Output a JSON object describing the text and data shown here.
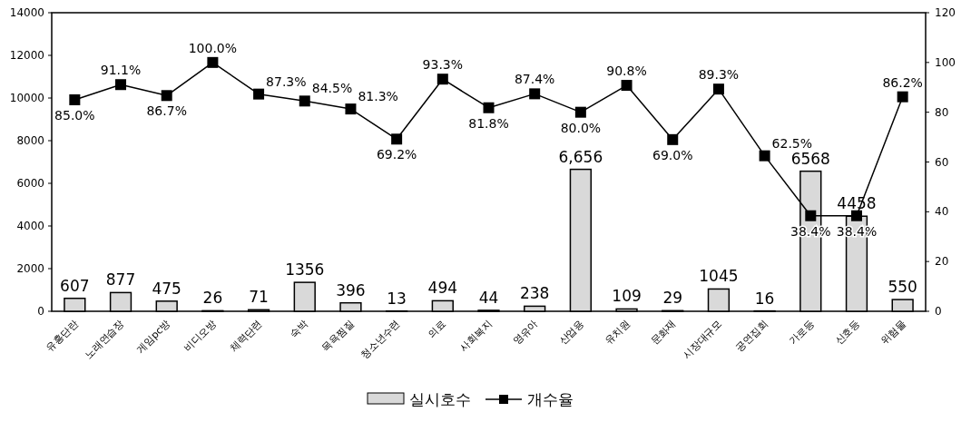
{
  "chart_data": {
    "type": "bar",
    "categories": [
      "유흥단란",
      "노래연습장",
      "게임pc방",
      "비디오방",
      "체력단련",
      "숙박",
      "목욕찜질",
      "청소년수련",
      "의료",
      "사회복지",
      "영유아",
      "산업용",
      "유치원",
      "문화재",
      "시장대규모",
      "공연집회",
      "가로등",
      "신호등",
      "위험물"
    ],
    "series": [
      {
        "name": "실시호수",
        "color": "#d9d9d9",
        "values": [
          607,
          877,
          475,
          26,
          71,
          1356,
          396,
          13,
          494,
          44,
          238,
          6656,
          109,
          29,
          1045,
          16,
          6568,
          4458,
          550
        ],
        "value_labels": [
          "607",
          "877",
          "475",
          "26",
          "71",
          "1356",
          "396",
          "13",
          "494",
          "44",
          "238",
          "6,656",
          "109",
          "29",
          "1045",
          "16",
          "6568",
          "4458",
          "550"
        ]
      },
      {
        "name": "개수율",
        "type": "line",
        "axis": "y2",
        "color": "#000000",
        "marker": "square",
        "values": [
          85.0,
          91.1,
          86.7,
          100.0,
          87.3,
          84.5,
          81.3,
          69.2,
          93.3,
          81.8,
          87.4,
          80.0,
          90.8,
          69.0,
          89.3,
          62.5,
          38.4,
          38.4,
          86.2
        ],
        "value_labels": [
          "85.0%",
          "91.1%",
          "86.7%",
          "100.0%",
          "87.3%",
          "84.5%",
          "81.3%",
          "69.2%",
          "93.3%",
          "81.8%",
          "87.4%",
          "80.0%",
          "90.8%",
          "69.0%",
          "89.3%",
          "62.5%",
          "38.4%",
          "38.4%",
          "86.2%"
        ]
      }
    ],
    "ylim": [
      0,
      14000
    ],
    "yticks": [
      0,
      2000,
      4000,
      6000,
      8000,
      10000,
      12000,
      14000
    ],
    "y2lim": [
      0,
      120
    ],
    "y2ticks": [
      0,
      20,
      40,
      60,
      80,
      100,
      120
    ],
    "legend": "bottom",
    "grid": false
  }
}
